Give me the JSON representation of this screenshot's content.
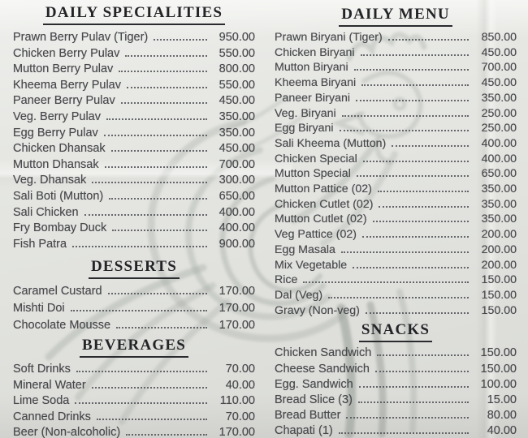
{
  "palette": {
    "paper": "#e4e5e1",
    "item_ink": "#48494c",
    "header_ink": "#232427",
    "watermark": "#a7aea7"
  },
  "watermark_name": "rooster-sketch-watermark",
  "columns": [
    {
      "sections": [
        {
          "title": "DAILY SPECIALITIES",
          "items": [
            {
              "name": "Prawn Berry Pulav (Tiger)",
              "price": "950.00"
            },
            {
              "name": "Chicken Berry Pulav",
              "price": "550.00"
            },
            {
              "name": "Mutton Berry Pulav",
              "price": "800.00"
            },
            {
              "name": "Kheema Berry Pulav",
              "price": "550.00"
            },
            {
              "name": "Paneer Berry Pulav",
              "price": "450.00"
            },
            {
              "name": "Veg. Berry Pulav",
              "price": "350.00"
            },
            {
              "name": "Egg Berry Pulav",
              "price": "350.00"
            },
            {
              "name": "Chicken Dhansak",
              "price": "450.00"
            },
            {
              "name": "Mutton Dhansak",
              "price": "700.00"
            },
            {
              "name": "Veg. Dhansak",
              "price": "300.00"
            },
            {
              "name": "Sali Boti (Mutton)",
              "price": "650.00"
            },
            {
              "name": "Sali Chicken",
              "price": "400.00"
            },
            {
              "name": "Fry Bombay Duck",
              "price": "400.00"
            },
            {
              "name": "Fish Patra",
              "price": "900.00"
            }
          ]
        },
        {
          "title": "DESSERTS",
          "items": [
            {
              "name": "Caramel Custard",
              "price": "170.00"
            },
            {
              "name": "Mishti Doi",
              "price": "170.00"
            },
            {
              "name": "Chocolate Mousse",
              "price": "170.00"
            }
          ]
        },
        {
          "title": "BEVERAGES",
          "items": [
            {
              "name": "Soft Drinks",
              "price": "70.00"
            },
            {
              "name": "Mineral Water",
              "price": "40.00"
            },
            {
              "name": "Lime Soda",
              "price": "110.00"
            },
            {
              "name": "Canned Drinks",
              "price": "70.00"
            },
            {
              "name": "Beer (Non-alcoholic)",
              "price": "170.00"
            }
          ]
        }
      ]
    },
    {
      "sections": [
        {
          "title": "DAILY MENU",
          "items": [
            {
              "name": "Prawn Biryani (Tiger)",
              "price": "850.00"
            },
            {
              "name": "Chicken Biryani",
              "price": "450.00"
            },
            {
              "name": "Mutton Biryani",
              "price": "700.00"
            },
            {
              "name": "Kheema Biryani",
              "price": "450.00"
            },
            {
              "name": "Paneer Biryani",
              "price": "350.00"
            },
            {
              "name": "Veg. Biryani",
              "price": "250.00"
            },
            {
              "name": "Egg Biryani",
              "price": "250.00"
            },
            {
              "name": "Sali Kheema (Mutton)",
              "price": "400.00"
            },
            {
              "name": "Chicken Special",
              "price": "400.00"
            },
            {
              "name": "Mutton Special",
              "price": "650.00"
            },
            {
              "name": "Mutton Pattice (02)",
              "price": "350.00"
            },
            {
              "name": "Chicken Cutlet (02)",
              "price": "350.00"
            },
            {
              "name": "Mutton Cutlet (02)",
              "price": "350.00"
            },
            {
              "name": "Veg Pattice (02)",
              "price": "200.00"
            },
            {
              "name": "Egg Masala",
              "price": "200.00"
            },
            {
              "name": "Mix Vegetable",
              "price": "200.00"
            },
            {
              "name": "Rice",
              "price": "150.00"
            },
            {
              "name": "Dal (Veg)",
              "price": "150.00"
            },
            {
              "name": "Gravy (Non-veg)",
              "price": "150.00"
            }
          ]
        },
        {
          "title": "SNACKS",
          "items": [
            {
              "name": "Chicken Sandwich",
              "price": "150.00"
            },
            {
              "name": "Cheese Sandwich",
              "price": "150.00"
            },
            {
              "name": "Egg. Sandwich",
              "price": "100.00"
            },
            {
              "name": "Bread Slice (3)",
              "price": "15.00"
            },
            {
              "name": "Bread Butter",
              "price": "80.00"
            },
            {
              "name": "Chapati (1)",
              "price": "40.00"
            }
          ]
        }
      ]
    }
  ]
}
